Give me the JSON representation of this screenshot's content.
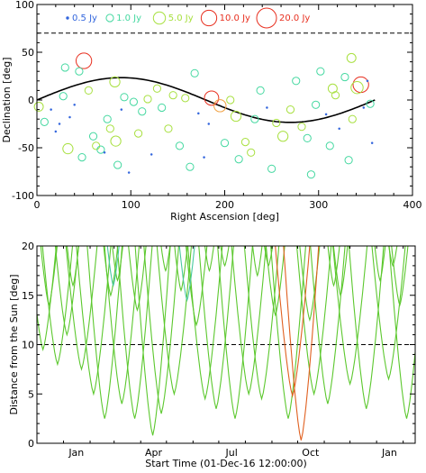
{
  "chart_data": [
    {
      "type": "scatter",
      "title": "",
      "xlabel": "Right Ascension [deg]",
      "ylabel": "Declination [deg]",
      "xlim": [
        0,
        400
      ],
      "ylim": [
        -100,
        100
      ],
      "xticks": [
        "0",
        "100",
        "200",
        "300",
        "400"
      ],
      "yticks": [
        "-100",
        "-50",
        "0",
        "50",
        "100"
      ],
      "legend_position": "top",
      "legend": [
        {
          "label": "0.5 Jy",
          "flux": 0.5,
          "color": "#3366dd"
        },
        {
          "label": "1.0 Jy",
          "flux": 1.0,
          "color": "#44d8a0"
        },
        {
          "label": "5.0 Jy",
          "flux": 5.0,
          "color": "#a8e040"
        },
        {
          "label": "10.0 Jy",
          "flux": 10.0,
          "color": "#e83020"
        },
        {
          "label": "20.0 Jy",
          "flux": 20.0,
          "color": "#e83020"
        }
      ],
      "reference_line": {
        "style": "dashed",
        "declination": 70
      },
      "curve": {
        "name": "",
        "amplitude": 23.4,
        "form": "declination = 23.4 sin(RA)"
      },
      "sources": [
        {
          "ra": 50,
          "dec": 41,
          "flux": 10,
          "color": "#e83020"
        },
        {
          "ra": 186,
          "dec": 2,
          "flux": 8,
          "color": "#e83020"
        },
        {
          "ra": 195,
          "dec": -6,
          "flux": 5,
          "color": "#f0a040"
        },
        {
          "ra": 345,
          "dec": 16,
          "flux": 10,
          "color": "#e83020"
        },
        {
          "ra": 341,
          "dec": 13,
          "flux": 5,
          "color": "#a8e040"
        },
        {
          "ra": 33,
          "dec": -51,
          "flux": 3,
          "color": "#a8e040"
        },
        {
          "ra": 84,
          "dec": -43,
          "flux": 3,
          "color": "#a8e040"
        },
        {
          "ra": 212,
          "dec": -17,
          "flux": 3,
          "color": "#a8e040"
        },
        {
          "ra": 262,
          "dec": -38,
          "flux": 3,
          "color": "#a8e040"
        },
        {
          "ra": 83,
          "dec": 19,
          "flux": 3,
          "color": "#a8e040"
        },
        {
          "ra": 335,
          "dec": 44,
          "flux": 2,
          "color": "#a8e040"
        },
        {
          "ra": 315,
          "dec": 12,
          "flux": 2,
          "color": "#a8e040"
        },
        {
          "ra": 2,
          "dec": -7,
          "flux": 2,
          "color": "#a8e040"
        },
        {
          "ra": 8,
          "dec": -23,
          "flux": 1,
          "color": "#44d8a0"
        },
        {
          "ra": 15,
          "dec": -10,
          "flux": 0.5,
          "color": "#3366dd"
        },
        {
          "ra": 20,
          "dec": -33,
          "flux": 0.5,
          "color": "#3366dd"
        },
        {
          "ra": 24,
          "dec": -25,
          "flux": 0.5,
          "color": "#3366dd"
        },
        {
          "ra": 28,
          "dec": 4,
          "flux": 1,
          "color": "#44d8a0"
        },
        {
          "ra": 30,
          "dec": 34,
          "flux": 1,
          "color": "#44d8a0"
        },
        {
          "ra": 35,
          "dec": -18,
          "flux": 0.5,
          "color": "#3366dd"
        },
        {
          "ra": 40,
          "dec": -5,
          "flux": 0.5,
          "color": "#3366dd"
        },
        {
          "ra": 45,
          "dec": 30,
          "flux": 1,
          "color": "#44d8a0"
        },
        {
          "ra": 48,
          "dec": -60,
          "flux": 1,
          "color": "#44d8a0"
        },
        {
          "ra": 55,
          "dec": 10,
          "flux": 1,
          "color": "#a8e040"
        },
        {
          "ra": 60,
          "dec": -38,
          "flux": 1,
          "color": "#44d8a0"
        },
        {
          "ra": 63,
          "dec": -48,
          "flux": 1,
          "color": "#a8e040"
        },
        {
          "ra": 68,
          "dec": -52,
          "flux": 1,
          "color": "#44d8a0"
        },
        {
          "ra": 72,
          "dec": -55,
          "flux": 0.5,
          "color": "#3366dd"
        },
        {
          "ra": 75,
          "dec": -20,
          "flux": 1,
          "color": "#44d8a0"
        },
        {
          "ra": 78,
          "dec": -30,
          "flux": 1,
          "color": "#a8e040"
        },
        {
          "ra": 86,
          "dec": -68,
          "flux": 1,
          "color": "#44d8a0"
        },
        {
          "ra": 90,
          "dec": -10,
          "flux": 0.5,
          "color": "#3366dd"
        },
        {
          "ra": 93,
          "dec": 3,
          "flux": 1,
          "color": "#44d8a0"
        },
        {
          "ra": 98,
          "dec": -76,
          "flux": 0.5,
          "color": "#3366dd"
        },
        {
          "ra": 103,
          "dec": -2,
          "flux": 1,
          "color": "#44d8a0"
        },
        {
          "ra": 108,
          "dec": -35,
          "flux": 1,
          "color": "#a8e040"
        },
        {
          "ra": 112,
          "dec": -12,
          "flux": 1,
          "color": "#44d8a0"
        },
        {
          "ra": 118,
          "dec": 1,
          "flux": 1,
          "color": "#a8e040"
        },
        {
          "ra": 122,
          "dec": -57,
          "flux": 0.5,
          "color": "#3366dd"
        },
        {
          "ra": 128,
          "dec": 12,
          "flux": 1,
          "color": "#a8e040"
        },
        {
          "ra": 133,
          "dec": -8,
          "flux": 1,
          "color": "#44d8a0"
        },
        {
          "ra": 140,
          "dec": -30,
          "flux": 1,
          "color": "#a8e040"
        },
        {
          "ra": 145,
          "dec": 5,
          "flux": 1,
          "color": "#a8e040"
        },
        {
          "ra": 152,
          "dec": -48,
          "flux": 1,
          "color": "#44d8a0"
        },
        {
          "ra": 158,
          "dec": 2,
          "flux": 1,
          "color": "#a8e040"
        },
        {
          "ra": 163,
          "dec": -70,
          "flux": 1,
          "color": "#44d8a0"
        },
        {
          "ra": 168,
          "dec": 28,
          "flux": 1,
          "color": "#44d8a0"
        },
        {
          "ra": 172,
          "dec": -14,
          "flux": 0.5,
          "color": "#3366dd"
        },
        {
          "ra": 178,
          "dec": -60,
          "flux": 0.5,
          "color": "#3366dd"
        },
        {
          "ra": 183,
          "dec": -25,
          "flux": 0.5,
          "color": "#3366dd"
        },
        {
          "ra": 200,
          "dec": -45,
          "flux": 1,
          "color": "#44d8a0"
        },
        {
          "ra": 206,
          "dec": 0,
          "flux": 1,
          "color": "#a8e040"
        },
        {
          "ra": 215,
          "dec": -62,
          "flux": 1,
          "color": "#44d8a0"
        },
        {
          "ra": 222,
          "dec": -44,
          "flux": 1,
          "color": "#a8e040"
        },
        {
          "ra": 228,
          "dec": -55,
          "flux": 1,
          "color": "#a8e040"
        },
        {
          "ra": 232,
          "dec": -20,
          "flux": 1,
          "color": "#44d8a0"
        },
        {
          "ra": 238,
          "dec": 10,
          "flux": 1,
          "color": "#44d8a0"
        },
        {
          "ra": 245,
          "dec": -8,
          "flux": 0.5,
          "color": "#3366dd"
        },
        {
          "ra": 250,
          "dec": -72,
          "flux": 1,
          "color": "#44d8a0"
        },
        {
          "ra": 255,
          "dec": -24,
          "flux": 1,
          "color": "#a8e040"
        },
        {
          "ra": 270,
          "dec": -10,
          "flux": 1,
          "color": "#a8e040"
        },
        {
          "ra": 276,
          "dec": 20,
          "flux": 1,
          "color": "#44d8a0"
        },
        {
          "ra": 282,
          "dec": -28,
          "flux": 1,
          "color": "#a8e040"
        },
        {
          "ra": 288,
          "dec": -40,
          "flux": 1,
          "color": "#44d8a0"
        },
        {
          "ra": 292,
          "dec": -78,
          "flux": 1,
          "color": "#44d8a0"
        },
        {
          "ra": 297,
          "dec": -5,
          "flux": 1,
          "color": "#44d8a0"
        },
        {
          "ra": 302,
          "dec": 30,
          "flux": 1,
          "color": "#44d8a0"
        },
        {
          "ra": 308,
          "dec": -15,
          "flux": 0.5,
          "color": "#3366dd"
        },
        {
          "ra": 312,
          "dec": -48,
          "flux": 1,
          "color": "#44d8a0"
        },
        {
          "ra": 318,
          "dec": 5,
          "flux": 1,
          "color": "#a8e040"
        },
        {
          "ra": 322,
          "dec": -30,
          "flux": 0.5,
          "color": "#3366dd"
        },
        {
          "ra": 328,
          "dec": 24,
          "flux": 1,
          "color": "#44d8a0"
        },
        {
          "ra": 332,
          "dec": -63,
          "flux": 1,
          "color": "#44d8a0"
        },
        {
          "ra": 336,
          "dec": -20,
          "flux": 1,
          "color": "#a8e040"
        },
        {
          "ra": 348,
          "dec": -8,
          "flux": 0.5,
          "color": "#3366dd"
        },
        {
          "ra": 352,
          "dec": 20,
          "flux": 0.5,
          "color": "#3366dd"
        },
        {
          "ra": 355,
          "dec": -4,
          "flux": 1,
          "color": "#44d8a0"
        },
        {
          "ra": 357,
          "dec": -45,
          "flux": 0.5,
          "color": "#3366dd"
        }
      ]
    },
    {
      "type": "line",
      "title": "",
      "xlabel": "Start Time (01-Dec-16 12:00:00)",
      "ylabel": "Distance from the Sun [deg]",
      "xlim": [
        "2016-12-01",
        "2018-02-15"
      ],
      "ylim": [
        0,
        20
      ],
      "xticks": [
        "Jan",
        "Apr",
        "Jul",
        "Oct",
        "Jan"
      ],
      "yticks": [
        "0",
        "5",
        "10",
        "15",
        "20"
      ],
      "threshold": {
        "style": "dashed",
        "value": 10
      },
      "series": [
        {
          "color": "#5cc82e",
          "minima": [
            [
              "2016-12-08",
              9.5
            ],
            [
              "2017-01-22",
              7.5
            ],
            [
              "2017-03-10",
              4
            ],
            [
              "2017-04-25",
              3
            ],
            [
              "2017-06-15",
              4.5
            ],
            [
              "2017-08-05",
              5
            ],
            [
              "2017-09-20",
              2.5
            ],
            [
              "2017-11-05",
              4
            ],
            [
              "2017-12-20",
              3.5
            ],
            [
              "2018-02-05",
              2.5
            ]
          ]
        },
        {
          "color": "#5cc82e",
          "minima": [
            [
              "2016-12-25",
              8
            ],
            [
              "2017-02-05",
              5
            ],
            [
              "2017-03-25",
              2.5
            ],
            [
              "2017-05-10",
              5
            ],
            [
              "2017-06-28",
              3.5
            ],
            [
              "2017-08-20",
              4.5
            ],
            [
              "2017-10-20",
              5
            ],
            [
              "2017-12-01",
              6
            ],
            [
              "2018-01-15",
              6.5
            ]
          ]
        },
        {
          "color": "#5cc82e",
          "minima": [
            [
              "2017-01-05",
              11
            ],
            [
              "2017-02-18",
              2.5
            ],
            [
              "2017-04-15",
              0.8
            ],
            [
              "2017-06-05",
              12
            ],
            [
              "2017-07-20",
              2.5
            ],
            [
              "2017-09-05",
              13
            ],
            [
              "2017-11-20",
              15
            ],
            [
              "2018-01-05",
              16.5
            ]
          ]
        },
        {
          "color": "#5cc82e",
          "minima": [
            [
              "2016-12-15",
              14
            ],
            [
              "2017-02-25",
              15
            ],
            [
              "2017-03-28",
              13.5
            ],
            [
              "2017-05-18",
              15.5
            ],
            [
              "2017-07-08",
              18
            ],
            [
              "2017-08-15",
              17
            ],
            [
              "2017-11-12",
              16
            ],
            [
              "2018-01-28",
              14
            ]
          ]
        },
        {
          "color": "#5cc82e",
          "minima": [
            [
              "2017-01-12",
              16
            ],
            [
              "2017-03-05",
              16.5
            ],
            [
              "2017-04-30",
              17.5
            ],
            [
              "2017-06-20",
              17.5
            ],
            [
              "2017-08-28",
              18
            ],
            [
              "2017-10-15",
              12.5
            ],
            [
              "2018-01-20",
              18
            ]
          ]
        },
        {
          "color": "#48c8a0",
          "minima": [
            [
              "2017-02-28",
              16
            ],
            [
              "2017-05-25",
              14.5
            ]
          ]
        },
        {
          "color": "#e06020",
          "minima": [
            [
              "2017-09-25",
              4.8
            ],
            [
              "2017-10-05",
              0.3
            ]
          ]
        }
      ]
    }
  ]
}
